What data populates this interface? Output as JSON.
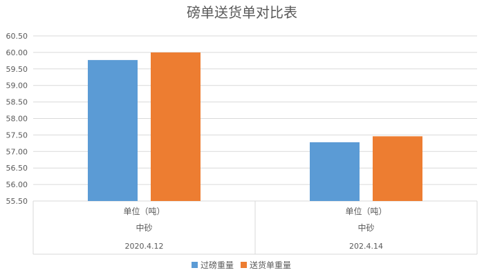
{
  "chart_data": {
    "type": "bar",
    "title": "磅单送货单对比表",
    "ylim": [
      55.5,
      60.5
    ],
    "ytick_step": 0.5,
    "yticks": [
      "55.50",
      "56.00",
      "56.50",
      "57.00",
      "57.50",
      "58.00",
      "58.50",
      "59.00",
      "59.50",
      "60.00",
      "60.50"
    ],
    "grid": true,
    "legend_position": "bottom",
    "categories": [
      {
        "level1": "单位（吨）",
        "level2": "中砂",
        "level3": "2020.4.12"
      },
      {
        "level1": "单位（吨）",
        "level2": "中砂",
        "level3": "202.4.14"
      }
    ],
    "series": [
      {
        "name": "过磅重量",
        "color": "#5b9bd5",
        "values": [
          59.77,
          57.28
        ]
      },
      {
        "name": "送货单重量",
        "color": "#ed7d31",
        "values": [
          60.0,
          57.46
        ]
      }
    ]
  },
  "colors": {
    "grid": "#d9d9d9",
    "axis_text": "#595959"
  }
}
